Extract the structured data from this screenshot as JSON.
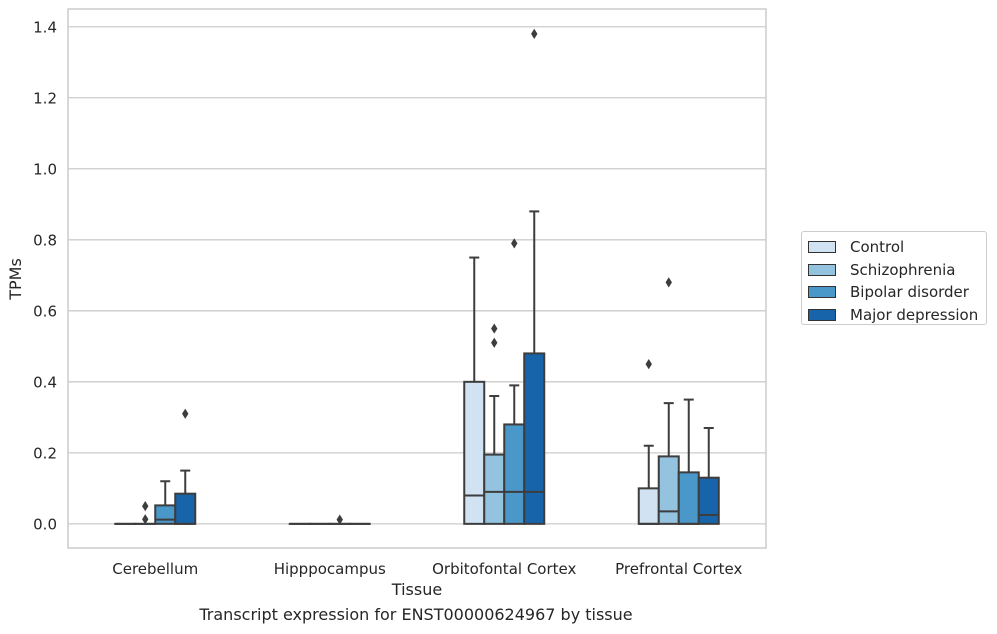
{
  "caption": "Transcript expression for ENST00000624967 by tissue",
  "chart_data": {
    "type": "box",
    "title": "",
    "xlabel": "Tissue",
    "ylabel": "TPMs",
    "ylim": [
      -0.068,
      1.45
    ],
    "yticks": [
      0.0,
      0.2,
      0.4,
      0.6,
      0.8,
      1.0,
      1.2,
      1.4
    ],
    "ytick_labels": [
      "0.0",
      "0.2",
      "0.4",
      "0.6",
      "0.8",
      "1.0",
      "1.2",
      "1.4"
    ],
    "grid": "horizontal",
    "legend_position": "right",
    "categories": [
      "Cerebellum",
      "Hipppocampus",
      "Orbitofontal Cortex",
      "Prefrontal Cortex"
    ],
    "series": [
      {
        "name": "Control",
        "color": "#d1e2f2",
        "boxes": [
          {
            "q1": 0.0,
            "median": 0.0,
            "q3": 0.0,
            "whislo": 0.0,
            "whishi": 0.0,
            "fliers": []
          },
          {
            "q1": 0.0,
            "median": 0.0,
            "q3": 0.0,
            "whislo": 0.0,
            "whishi": 0.0,
            "fliers": []
          },
          {
            "q1": 0.0,
            "median": 0.08,
            "q3": 0.4,
            "whislo": 0.0,
            "whishi": 0.75,
            "fliers": []
          },
          {
            "q1": 0.0,
            "median": 0.0,
            "q3": 0.1,
            "whislo": 0.0,
            "whishi": 0.22,
            "fliers": [
              0.45
            ]
          }
        ]
      },
      {
        "name": "Schizophrenia",
        "color": "#94c3df",
        "boxes": [
          {
            "q1": 0.0,
            "median": 0.0,
            "q3": 0.0,
            "whislo": 0.0,
            "whishi": 0.0,
            "fliers": [
              0.05,
              0.013
            ]
          },
          {
            "q1": 0.0,
            "median": 0.0,
            "q3": 0.0,
            "whislo": 0.0,
            "whishi": 0.0,
            "fliers": []
          },
          {
            "q1": 0.0,
            "median": 0.09,
            "q3": 0.195,
            "whislo": 0.0,
            "whishi": 0.36,
            "fliers": [
              0.55,
              0.51
            ]
          },
          {
            "q1": 0.0,
            "median": 0.035,
            "q3": 0.19,
            "whislo": 0.0,
            "whishi": 0.34,
            "fliers": [
              0.68
            ]
          }
        ]
      },
      {
        "name": "Bipolar disorder",
        "color": "#4a98c9",
        "boxes": [
          {
            "q1": 0.0,
            "median": 0.012,
            "q3": 0.052,
            "whislo": 0.0,
            "whishi": 0.12,
            "fliers": []
          },
          {
            "q1": 0.0,
            "median": 0.0,
            "q3": 0.0,
            "whislo": 0.0,
            "whishi": 0.0,
            "fliers": [
              0.012
            ]
          },
          {
            "q1": 0.0,
            "median": 0.09,
            "q3": 0.28,
            "whislo": 0.0,
            "whishi": 0.39,
            "fliers": [
              0.79
            ]
          },
          {
            "q1": 0.0,
            "median": 0.0,
            "q3": 0.145,
            "whislo": 0.0,
            "whishi": 0.35,
            "fliers": []
          }
        ]
      },
      {
        "name": "Major depression",
        "color": "#1764ab",
        "boxes": [
          {
            "q1": 0.0,
            "median": 0.0,
            "q3": 0.085,
            "whislo": 0.0,
            "whishi": 0.15,
            "fliers": [
              0.31
            ]
          },
          {
            "q1": 0.0,
            "median": 0.0,
            "q3": 0.0,
            "whislo": 0.0,
            "whishi": 0.0,
            "fliers": []
          },
          {
            "q1": 0.0,
            "median": 0.09,
            "q3": 0.48,
            "whislo": 0.0,
            "whishi": 0.88,
            "fliers": [
              1.38
            ]
          },
          {
            "q1": 0.0,
            "median": 0.025,
            "q3": 0.13,
            "whislo": 0.0,
            "whishi": 0.27,
            "fliers": []
          }
        ]
      }
    ]
  }
}
